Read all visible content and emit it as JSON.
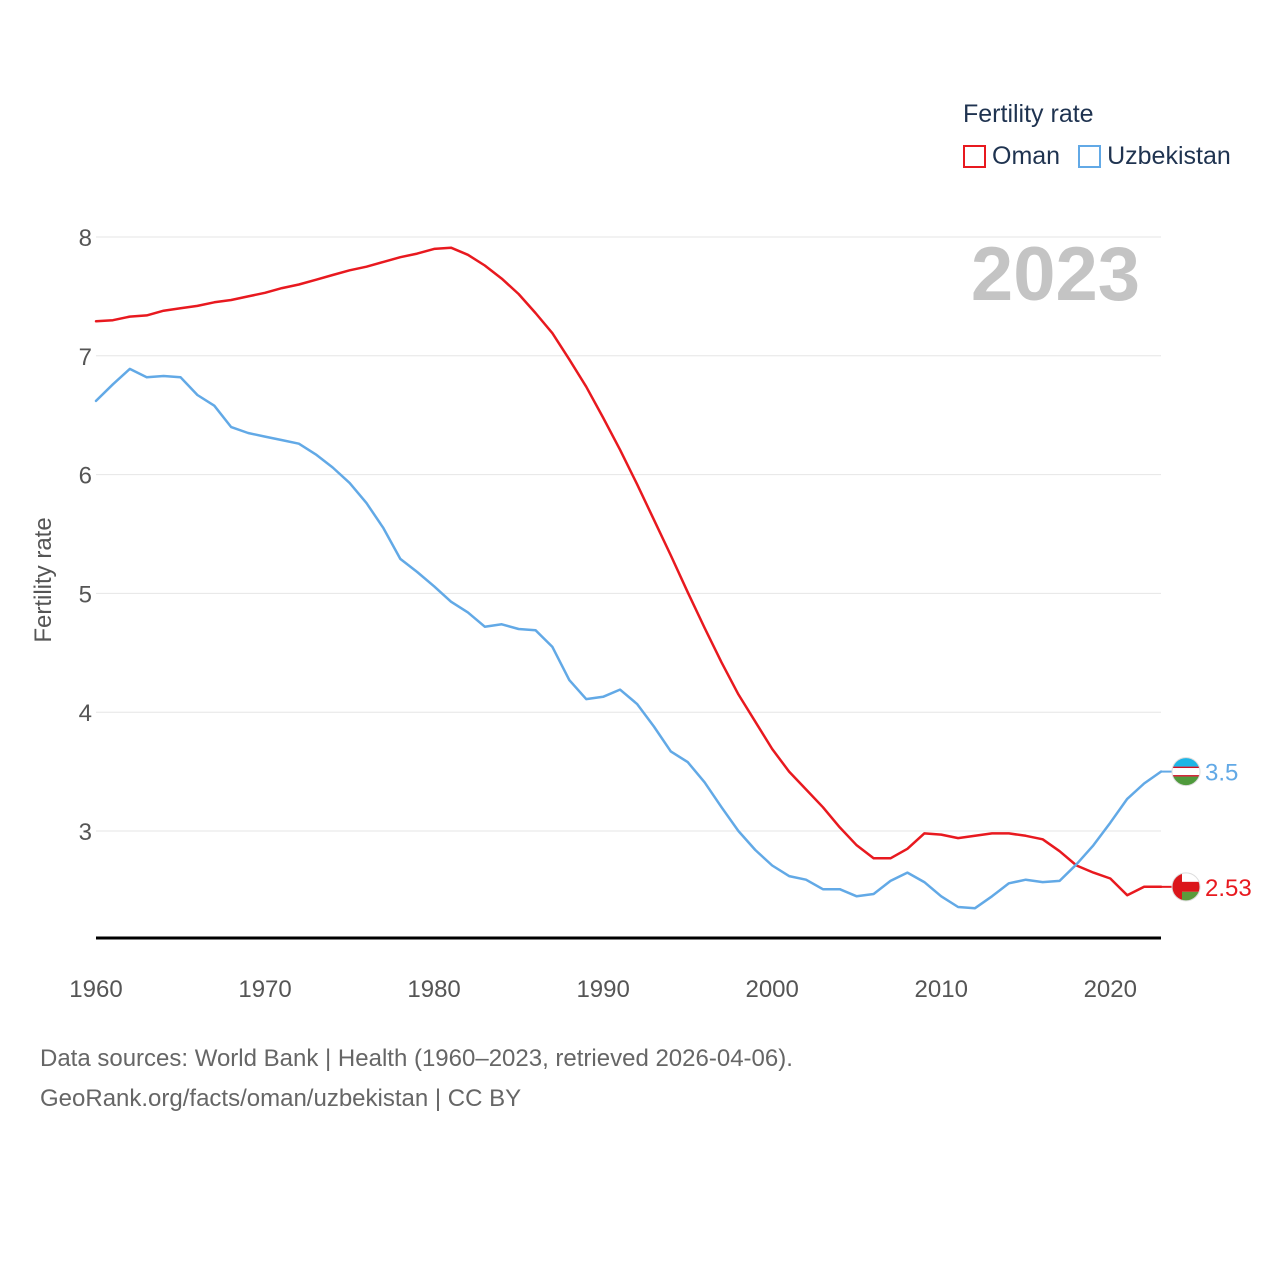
{
  "chart_data": {
    "type": "line",
    "title": "",
    "ylabel": "Fertility rate",
    "xlabel": "",
    "ylim": [
      2.1,
      8.2
    ],
    "xlim": [
      1960,
      2023
    ],
    "yticks": [
      3,
      4,
      5,
      6,
      7,
      8
    ],
    "xticks": [
      1960,
      1970,
      1980,
      1990,
      2000,
      2010,
      2020
    ],
    "year_label": "2023",
    "x": [
      1960,
      1961,
      1962,
      1963,
      1964,
      1965,
      1966,
      1967,
      1968,
      1969,
      1970,
      1971,
      1972,
      1973,
      1974,
      1975,
      1976,
      1977,
      1978,
      1979,
      1980,
      1981,
      1982,
      1983,
      1984,
      1985,
      1986,
      1987,
      1988,
      1989,
      1990,
      1991,
      1992,
      1993,
      1994,
      1995,
      1996,
      1997,
      1998,
      1999,
      2000,
      2001,
      2002,
      2003,
      2004,
      2005,
      2006,
      2007,
      2008,
      2009,
      2010,
      2011,
      2012,
      2013,
      2014,
      2015,
      2016,
      2017,
      2018,
      2019,
      2020,
      2021,
      2022,
      2023
    ],
    "series": [
      {
        "name": "Oman",
        "color": "#e8191f",
        "end_label": "2.53",
        "values": [
          7.29,
          7.3,
          7.33,
          7.34,
          7.38,
          7.4,
          7.42,
          7.45,
          7.47,
          7.5,
          7.53,
          7.57,
          7.6,
          7.64,
          7.68,
          7.72,
          7.75,
          7.79,
          7.83,
          7.86,
          7.9,
          7.91,
          7.85,
          7.76,
          7.65,
          7.52,
          7.36,
          7.19,
          6.97,
          6.74,
          6.48,
          6.21,
          5.92,
          5.62,
          5.32,
          5.01,
          4.71,
          4.42,
          4.15,
          3.92,
          3.69,
          3.5,
          3.35,
          3.2,
          3.03,
          2.88,
          2.77,
          2.77,
          2.85,
          2.98,
          2.97,
          2.94,
          2.96,
          2.98,
          2.98,
          2.96,
          2.93,
          2.83,
          2.71,
          2.65,
          2.6,
          2.46,
          2.53,
          2.53
        ]
      },
      {
        "name": "Uzbekistan",
        "color": "#62a9e6",
        "end_label": "3.5",
        "values": [
          6.62,
          6.76,
          6.89,
          6.82,
          6.83,
          6.82,
          6.67,
          6.58,
          6.4,
          6.35,
          6.32,
          6.29,
          6.26,
          6.17,
          6.06,
          5.93,
          5.76,
          5.55,
          5.29,
          5.18,
          5.06,
          4.93,
          4.84,
          4.72,
          4.74,
          4.7,
          4.69,
          4.55,
          4.27,
          4.11,
          4.13,
          4.19,
          4.07,
          3.88,
          3.67,
          3.58,
          3.41,
          3.2,
          3.0,
          2.84,
          2.71,
          2.62,
          2.59,
          2.51,
          2.51,
          2.45,
          2.47,
          2.58,
          2.65,
          2.57,
          2.45,
          2.36,
          2.35,
          2.45,
          2.56,
          2.59,
          2.57,
          2.58,
          2.72,
          2.88,
          3.07,
          3.27,
          3.4,
          3.5
        ]
      }
    ]
  },
  "legend": {
    "title": "Fertility rate",
    "items": [
      {
        "label": "Oman",
        "color": "#e8191f"
      },
      {
        "label": "Uzbekistan",
        "color": "#62a9e6"
      }
    ]
  },
  "footer": {
    "sources": "Data sources: World Bank | Health (1960–2023, retrieved 2026-04-06).",
    "credit": "GeoRank.org/facts/oman/uzbekistan | CC BY"
  }
}
